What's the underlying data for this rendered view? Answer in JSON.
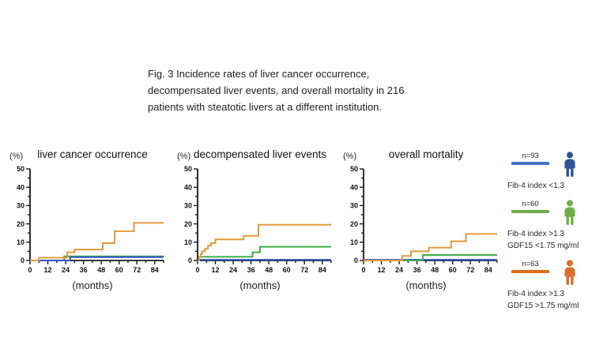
{
  "figure": {
    "caption_lines": [
      "Fig. 3 Incidence rates of liver cancer occurrence,",
      "decompensated liver events, and overall mortality in 216",
      "patients with steatotic livers at a different institution."
    ]
  },
  "chart_data": [
    {
      "type": "line",
      "style": "kaplan-meier-step",
      "title": "liver cancer occurrence",
      "y_unit": "(%)",
      "x_label": "(months)",
      "xlim": [
        0,
        90
      ],
      "ylim": [
        0,
        50
      ],
      "x_ticks_major": [
        0,
        12,
        24,
        36,
        48,
        60,
        72,
        84
      ],
      "y_ticks_major": [
        0,
        10,
        20,
        30,
        40,
        50
      ],
      "series": [
        {
          "name": "Fib-4 index >1.3, GDF15 <1.75 mg/ml",
          "color": "#3ead49",
          "points": [
            [
              0,
              0
            ],
            [
              23,
              2.3
            ],
            [
              90,
              2.3
            ]
          ]
        },
        {
          "name": "Fib-4 index <1.3",
          "color": "#2f52c3",
          "points": [
            [
              0,
              0
            ],
            [
              27,
              1.8
            ],
            [
              90,
              1.8
            ]
          ]
        },
        {
          "name": "Fib-4 index >1.3, GDF15 >1.75 mg/ml",
          "color": "#e39a3b",
          "points": [
            [
              0,
              0
            ],
            [
              6,
              1.5
            ],
            [
              25,
              4.5
            ],
            [
              30,
              6
            ],
            [
              49,
              9.5
            ],
            [
              57,
              16
            ],
            [
              70,
              20.5
            ],
            [
              90,
              20.5
            ]
          ]
        }
      ]
    },
    {
      "type": "line",
      "style": "kaplan-meier-step",
      "title": "decompensated liver events",
      "y_unit": "(%)",
      "x_label": "(months)",
      "xlim": [
        0,
        90
      ],
      "ylim": [
        0,
        50
      ],
      "x_ticks_major": [
        0,
        12,
        24,
        36,
        48,
        60,
        72,
        84
      ],
      "y_ticks_major": [
        0,
        10,
        20,
        30,
        40,
        50
      ],
      "series": [
        {
          "name": "Fib-4 index <1.3",
          "color": "#2f52c3",
          "points": [
            [
              0,
              0.4
            ],
            [
              90,
              0.4
            ]
          ]
        },
        {
          "name": "Fib-4 index >1.3, GDF15 <1.75 mg/ml",
          "color": "#3ead49",
          "points": [
            [
              0,
              0
            ],
            [
              1,
              2
            ],
            [
              37,
              4.5
            ],
            [
              42,
              7.5
            ],
            [
              90,
              7.5
            ]
          ]
        },
        {
          "name": "Fib-4 index >1.3, GDF15 >1.75 mg/ml",
          "color": "#e39a3b",
          "points": [
            [
              0,
              0
            ],
            [
              1,
              2
            ],
            [
              2,
              3.5
            ],
            [
              3,
              5
            ],
            [
              5,
              6.5
            ],
            [
              7,
              8
            ],
            [
              9,
              9.5
            ],
            [
              12,
              11.5
            ],
            [
              31,
              13.5
            ],
            [
              41,
              19.5
            ],
            [
              90,
              19.5
            ]
          ]
        }
      ]
    },
    {
      "type": "line",
      "style": "kaplan-meier-step",
      "title": "overall mortality",
      "y_unit": "(%)",
      "x_label": "(months)",
      "xlim": [
        0,
        90
      ],
      "ylim": [
        0,
        50
      ],
      "x_ticks_major": [
        0,
        12,
        24,
        36,
        48,
        60,
        72,
        84
      ],
      "y_ticks_major": [
        0,
        10,
        20,
        30,
        40,
        50
      ],
      "series": [
        {
          "name": "Fib-4 index <1.3",
          "color": "#2f52c3",
          "points": [
            [
              0,
              0.4
            ],
            [
              90,
              0.4
            ]
          ]
        },
        {
          "name": "Fib-4 index >1.3, GDF15 <1.75 mg/ml",
          "color": "#3ead49",
          "points": [
            [
              0,
              0
            ],
            [
              40,
              3
            ],
            [
              90,
              3
            ]
          ]
        },
        {
          "name": "Fib-4 index >1.3, GDF15 >1.75 mg/ml",
          "color": "#e39a3b",
          "points": [
            [
              0,
              0
            ],
            [
              26,
              2.5
            ],
            [
              32,
              5
            ],
            [
              44,
              7
            ],
            [
              59,
              10.5
            ],
            [
              69,
              14.5
            ],
            [
              90,
              14.5
            ]
          ]
        }
      ]
    }
  ],
  "legend": {
    "entries": [
      {
        "n": "n=93",
        "color": "#4472c4",
        "person_color": "#2e5597",
        "lines": [
          "Fib-4 index <1.3"
        ]
      },
      {
        "n": "n=60",
        "color": "#70ad47",
        "person_color": "#70ad47",
        "lines": [
          "Fib-4 index >1.3",
          "GDF15 <1.75 mg/ml"
        ]
      },
      {
        "n": "n=63",
        "color": "#e06c1b",
        "person_color": "#d96e2d",
        "lines": [
          "Fib-4 index >1.3",
          "GDF15 >1.75 mg/ml"
        ]
      }
    ]
  }
}
